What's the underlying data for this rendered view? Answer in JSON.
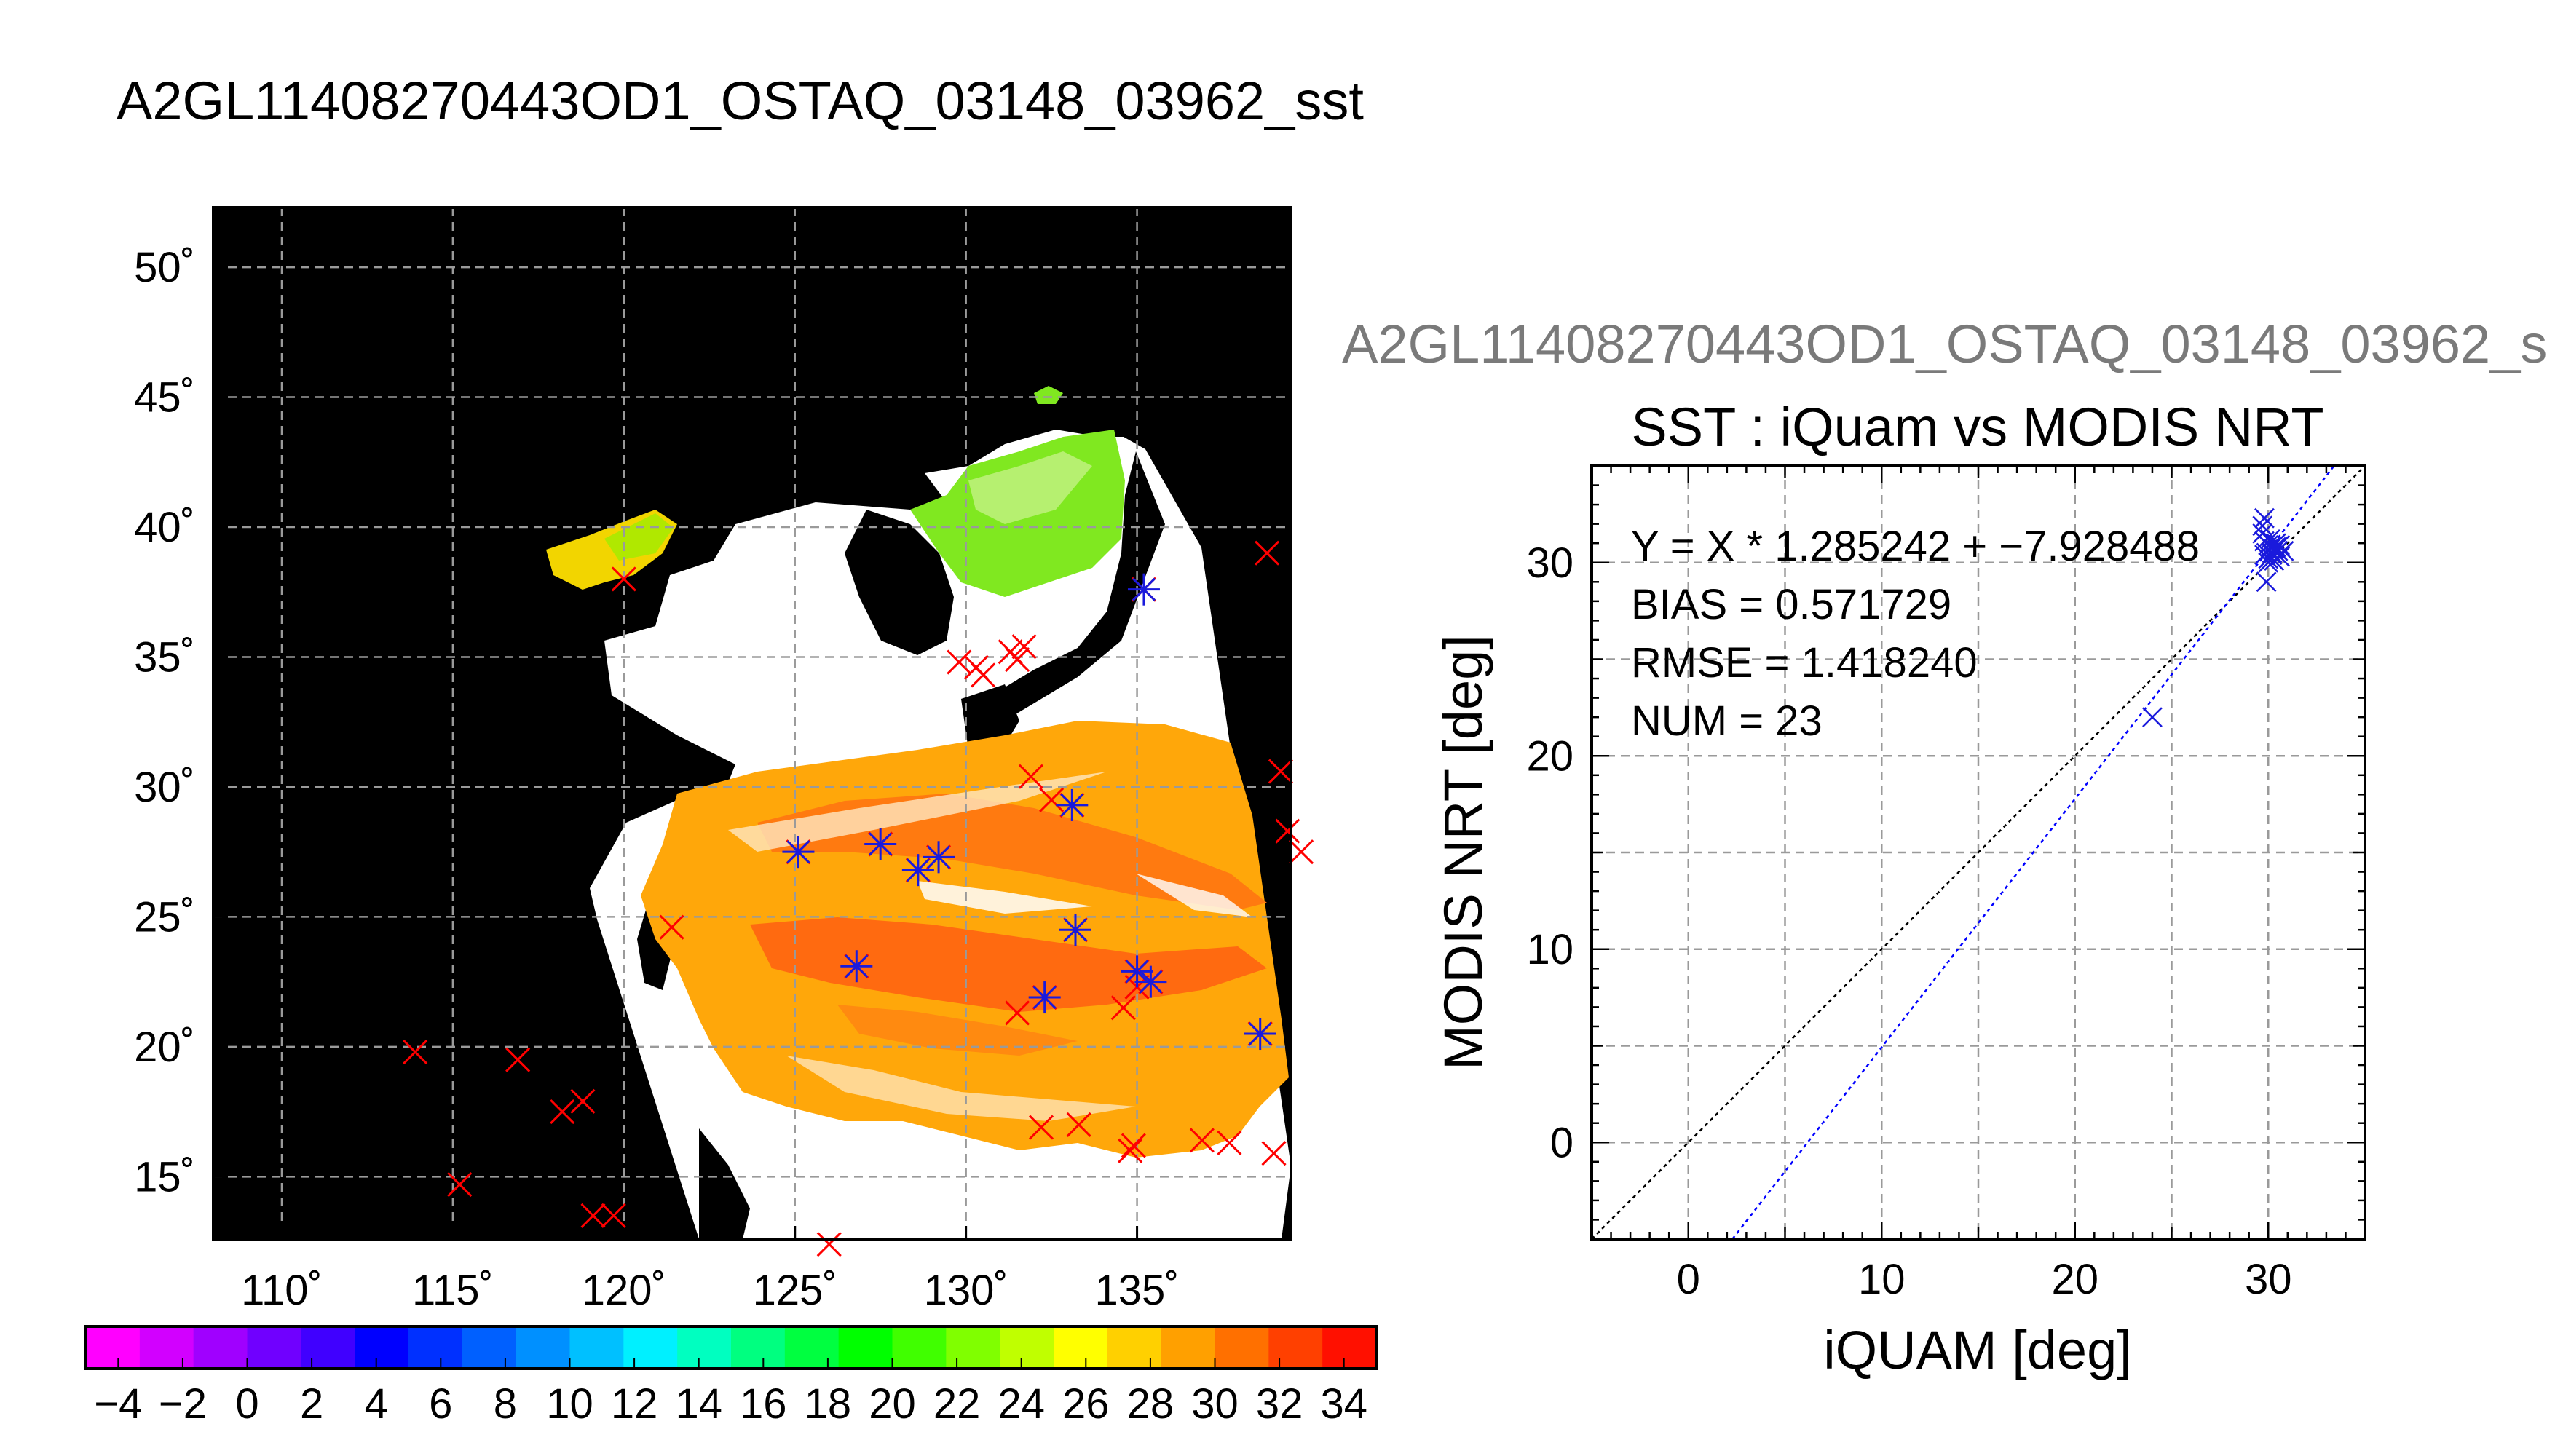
{
  "figure_title": "A2GL11408270443OD1_OSTAQ_03148_03962_sst",
  "scatter_header": "A2GL11408270443OD1_OSTAQ_03148_03962_s",
  "colors": {
    "land": "#000000",
    "cloud": "#ffffff",
    "iquam_marker": "#ff0000",
    "matchup_marker": "#1a1adc",
    "fit_line": "#0000ff",
    "one_to_one_line": "#000000",
    "scatter_marker": "#1a1adc"
  },
  "chart_data": [
    {
      "type": "map",
      "title": "A2GL11408270443OD1_OSTAQ_03148_03962_sst",
      "lon_ticks": [
        "110˚",
        "115˚",
        "120˚",
        "125˚",
        "130˚",
        "135˚"
      ],
      "lon_values": [
        110,
        115,
        120,
        125,
        130,
        135
      ],
      "lat_ticks": [
        "50˚",
        "45˚",
        "40˚",
        "35˚",
        "30˚",
        "25˚",
        "20˚",
        "15˚"
      ],
      "lat_values": [
        50,
        45,
        40,
        35,
        30,
        25,
        20,
        15
      ],
      "lon_range": [
        108,
        139.5
      ],
      "lat_range": [
        12.6,
        52.3
      ],
      "grid": true,
      "colorbar": {
        "range": [
          -5,
          35
        ],
        "tick_labels": [
          "−4",
          "−2",
          "0",
          "2",
          "4",
          "6",
          "8",
          "10",
          "12",
          "14",
          "16",
          "18",
          "20",
          "22",
          "24",
          "26",
          "28",
          "30",
          "32",
          "34"
        ],
        "tick_values": [
          -4,
          -2,
          0,
          2,
          4,
          6,
          8,
          10,
          12,
          14,
          16,
          18,
          20,
          22,
          24,
          26,
          28,
          30,
          32,
          34
        ],
        "colors": [
          "#ff00ff",
          "#d200ff",
          "#a000ff",
          "#7000ff",
          "#4000ff",
          "#0000ff",
          "#0030ff",
          "#0060ff",
          "#0090ff",
          "#00c0ff",
          "#00f0ff",
          "#00ffc0",
          "#00ff80",
          "#00ff40",
          "#00ff00",
          "#40ff00",
          "#80ff00",
          "#c0ff00",
          "#ffff00",
          "#ffd000",
          "#ffa000",
          "#ff7000",
          "#ff4000",
          "#ff1000"
        ]
      },
      "iquam_points": [
        {
          "lon": 138.8,
          "lat": 39.0
        },
        {
          "lon": 120.0,
          "lat": 38.0
        },
        {
          "lon": 129.8,
          "lat": 34.8
        },
        {
          "lon": 130.3,
          "lat": 34.6
        },
        {
          "lon": 130.5,
          "lat": 34.3
        },
        {
          "lon": 131.3,
          "lat": 35.2
        },
        {
          "lon": 131.7,
          "lat": 35.4
        },
        {
          "lon": 131.5,
          "lat": 34.9
        },
        {
          "lon": 139.2,
          "lat": 30.6
        },
        {
          "lon": 139.4,
          "lat": 28.3
        },
        {
          "lon": 139.8,
          "lat": 27.5
        },
        {
          "lon": 121.4,
          "lat": 24.6
        },
        {
          "lon": 113.9,
          "lat": 19.8
        },
        {
          "lon": 116.9,
          "lat": 19.5
        },
        {
          "lon": 118.2,
          "lat": 17.5
        },
        {
          "lon": 118.8,
          "lat": 17.9
        },
        {
          "lon": 115.2,
          "lat": 14.7
        },
        {
          "lon": 119.1,
          "lat": 13.5
        },
        {
          "lon": 119.7,
          "lat": 13.5
        },
        {
          "lon": 126.0,
          "lat": 12.4
        },
        {
          "lon": 132.2,
          "lat": 16.9
        },
        {
          "lon": 133.3,
          "lat": 17.0
        },
        {
          "lon": 134.8,
          "lat": 16.0
        },
        {
          "lon": 134.9,
          "lat": 16.2
        },
        {
          "lon": 136.9,
          "lat": 16.4
        },
        {
          "lon": 137.7,
          "lat": 16.3
        },
        {
          "lon": 139.0,
          "lat": 15.9
        },
        {
          "lon": 131.5,
          "lat": 21.3
        },
        {
          "lon": 134.6,
          "lat": 21.5
        },
        {
          "lon": 131.9,
          "lat": 30.4
        },
        {
          "lon": 135.0,
          "lat": 22.3
        },
        {
          "lon": 132.5,
          "lat": 29.5
        }
      ],
      "matchup_points": [
        {
          "lon": 135.2,
          "lat": 37.6
        },
        {
          "lon": 125.1,
          "lat": 27.5
        },
        {
          "lon": 127.5,
          "lat": 27.8
        },
        {
          "lon": 128.6,
          "lat": 26.8
        },
        {
          "lon": 129.2,
          "lat": 27.3
        },
        {
          "lon": 133.1,
          "lat": 29.3
        },
        {
          "lon": 126.8,
          "lat": 23.1
        },
        {
          "lon": 133.2,
          "lat": 24.5
        },
        {
          "lon": 132.3,
          "lat": 21.9
        },
        {
          "lon": 135.0,
          "lat": 22.9
        },
        {
          "lon": 135.4,
          "lat": 22.5
        },
        {
          "lon": 138.6,
          "lat": 20.5
        }
      ]
    },
    {
      "type": "scatter",
      "title": "SST : iQuam vs MODIS NRT",
      "xlabel": "iQUAM [deg]",
      "ylabel": "MODIS NRT [deg]",
      "xlim": [
        -5,
        35
      ],
      "ylim": [
        -5,
        35
      ],
      "x_ticks": [
        0,
        10,
        20,
        30
      ],
      "y_ticks": [
        0,
        10,
        20,
        30
      ],
      "grid": true,
      "annotations": [
        "Y = X * 1.285242 + −7.928488",
        "BIAS = 0.571729",
        "RMSE = 1.418240",
        "NUM = 23"
      ],
      "fit": {
        "slope": 1.285242,
        "intercept": -7.928488
      },
      "bias": 0.571729,
      "rmse": 1.41824,
      "num": 23,
      "series": [
        {
          "x": [
            24.0,
            29.7,
            29.8,
            29.9,
            30.0,
            30.1,
            30.2,
            30.3,
            30.4,
            30.5,
            30.6,
            30.8,
            29.7,
            29.8,
            30.0,
            30.2,
            30.4,
            29.9,
            30.1,
            30.3,
            29.8,
            30.0,
            30.6
          ],
          "y": [
            22.0,
            31.5,
            32.3,
            29.0,
            30.2,
            30.8,
            30.5,
            30.1,
            31.0,
            30.6,
            30.3,
            30.6,
            31.9,
            31.1,
            30.9,
            30.4,
            30.8,
            30.5,
            31.2,
            30.7,
            30.4,
            30.0,
            30.9
          ]
        }
      ]
    }
  ]
}
